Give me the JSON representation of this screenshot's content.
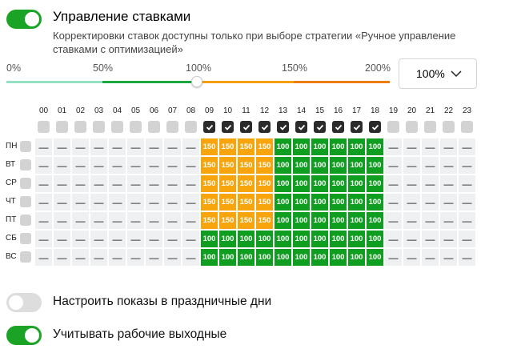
{
  "bid_management": {
    "toggle_on": true,
    "title": "Управление ставками",
    "description": "Корректировки ставок доступны только при выборе стратегии «Ручное управление ставками с оптимизацией»"
  },
  "slider": {
    "labels": [
      "0%",
      "50%",
      "100%",
      "150%",
      "200%"
    ],
    "value": "100%",
    "colors": {
      "segment_0_50": "#93e0c2",
      "segment_50_100": "#1aa841",
      "segment_100_150": "#f59f0c",
      "segment_150_200": "#ef7d0c"
    }
  },
  "select": {
    "value": "100%",
    "icon": "chevron-down-icon"
  },
  "schedule": {
    "hours": [
      "00",
      "01",
      "02",
      "03",
      "04",
      "05",
      "06",
      "07",
      "08",
      "09",
      "10",
      "11",
      "12",
      "13",
      "14",
      "15",
      "16",
      "17",
      "18",
      "19",
      "20",
      "21",
      "22",
      "23"
    ],
    "hour_checked": [
      false,
      false,
      false,
      false,
      false,
      false,
      false,
      false,
      false,
      true,
      true,
      true,
      true,
      true,
      true,
      true,
      true,
      true,
      true,
      false,
      false,
      false,
      false,
      false
    ],
    "empty_symbol": "—",
    "colors": {
      "empty": "#eef0f2",
      "v150": "#f7a40d",
      "v100": "#0f9e1f"
    },
    "days": [
      {
        "label": "ПН",
        "values": [
          "—",
          "—",
          "—",
          "—",
          "—",
          "—",
          "—",
          "—",
          "—",
          "150",
          "150",
          "150",
          "150",
          "100",
          "100",
          "100",
          "100",
          "100",
          "100",
          "—",
          "—",
          "—",
          "—",
          "—"
        ]
      },
      {
        "label": "ВТ",
        "values": [
          "—",
          "—",
          "—",
          "—",
          "—",
          "—",
          "—",
          "—",
          "—",
          "150",
          "150",
          "150",
          "150",
          "100",
          "100",
          "100",
          "100",
          "100",
          "100",
          "—",
          "—",
          "—",
          "—",
          "—"
        ]
      },
      {
        "label": "СР",
        "values": [
          "—",
          "—",
          "—",
          "—",
          "—",
          "—",
          "—",
          "—",
          "—",
          "150",
          "150",
          "150",
          "150",
          "100",
          "100",
          "100",
          "100",
          "100",
          "100",
          "—",
          "—",
          "—",
          "—",
          "—"
        ]
      },
      {
        "label": "ЧТ",
        "values": [
          "—",
          "—",
          "—",
          "—",
          "—",
          "—",
          "—",
          "—",
          "—",
          "150",
          "150",
          "150",
          "150",
          "100",
          "100",
          "100",
          "100",
          "100",
          "100",
          "—",
          "—",
          "—",
          "—",
          "—"
        ]
      },
      {
        "label": "ПТ",
        "values": [
          "—",
          "—",
          "—",
          "—",
          "—",
          "—",
          "—",
          "—",
          "—",
          "150",
          "150",
          "150",
          "150",
          "100",
          "100",
          "100",
          "100",
          "100",
          "100",
          "—",
          "—",
          "—",
          "—",
          "—"
        ]
      },
      {
        "label": "СБ",
        "values": [
          "—",
          "—",
          "—",
          "—",
          "—",
          "—",
          "—",
          "—",
          "—",
          "100",
          "100",
          "100",
          "100",
          "100",
          "100",
          "100",
          "100",
          "100",
          "100",
          "—",
          "—",
          "—",
          "—",
          "—"
        ]
      },
      {
        "label": "ВС",
        "values": [
          "—",
          "—",
          "—",
          "—",
          "—",
          "—",
          "—",
          "—",
          "—",
          "100",
          "100",
          "100",
          "100",
          "100",
          "100",
          "100",
          "100",
          "100",
          "100",
          "—",
          "—",
          "—",
          "—",
          "—"
        ]
      }
    ]
  },
  "options": [
    {
      "label": "Настроить показы в праздничные дни",
      "toggle_on": false
    },
    {
      "label": "Учитывать рабочие выходные",
      "toggle_on": true
    }
  ]
}
